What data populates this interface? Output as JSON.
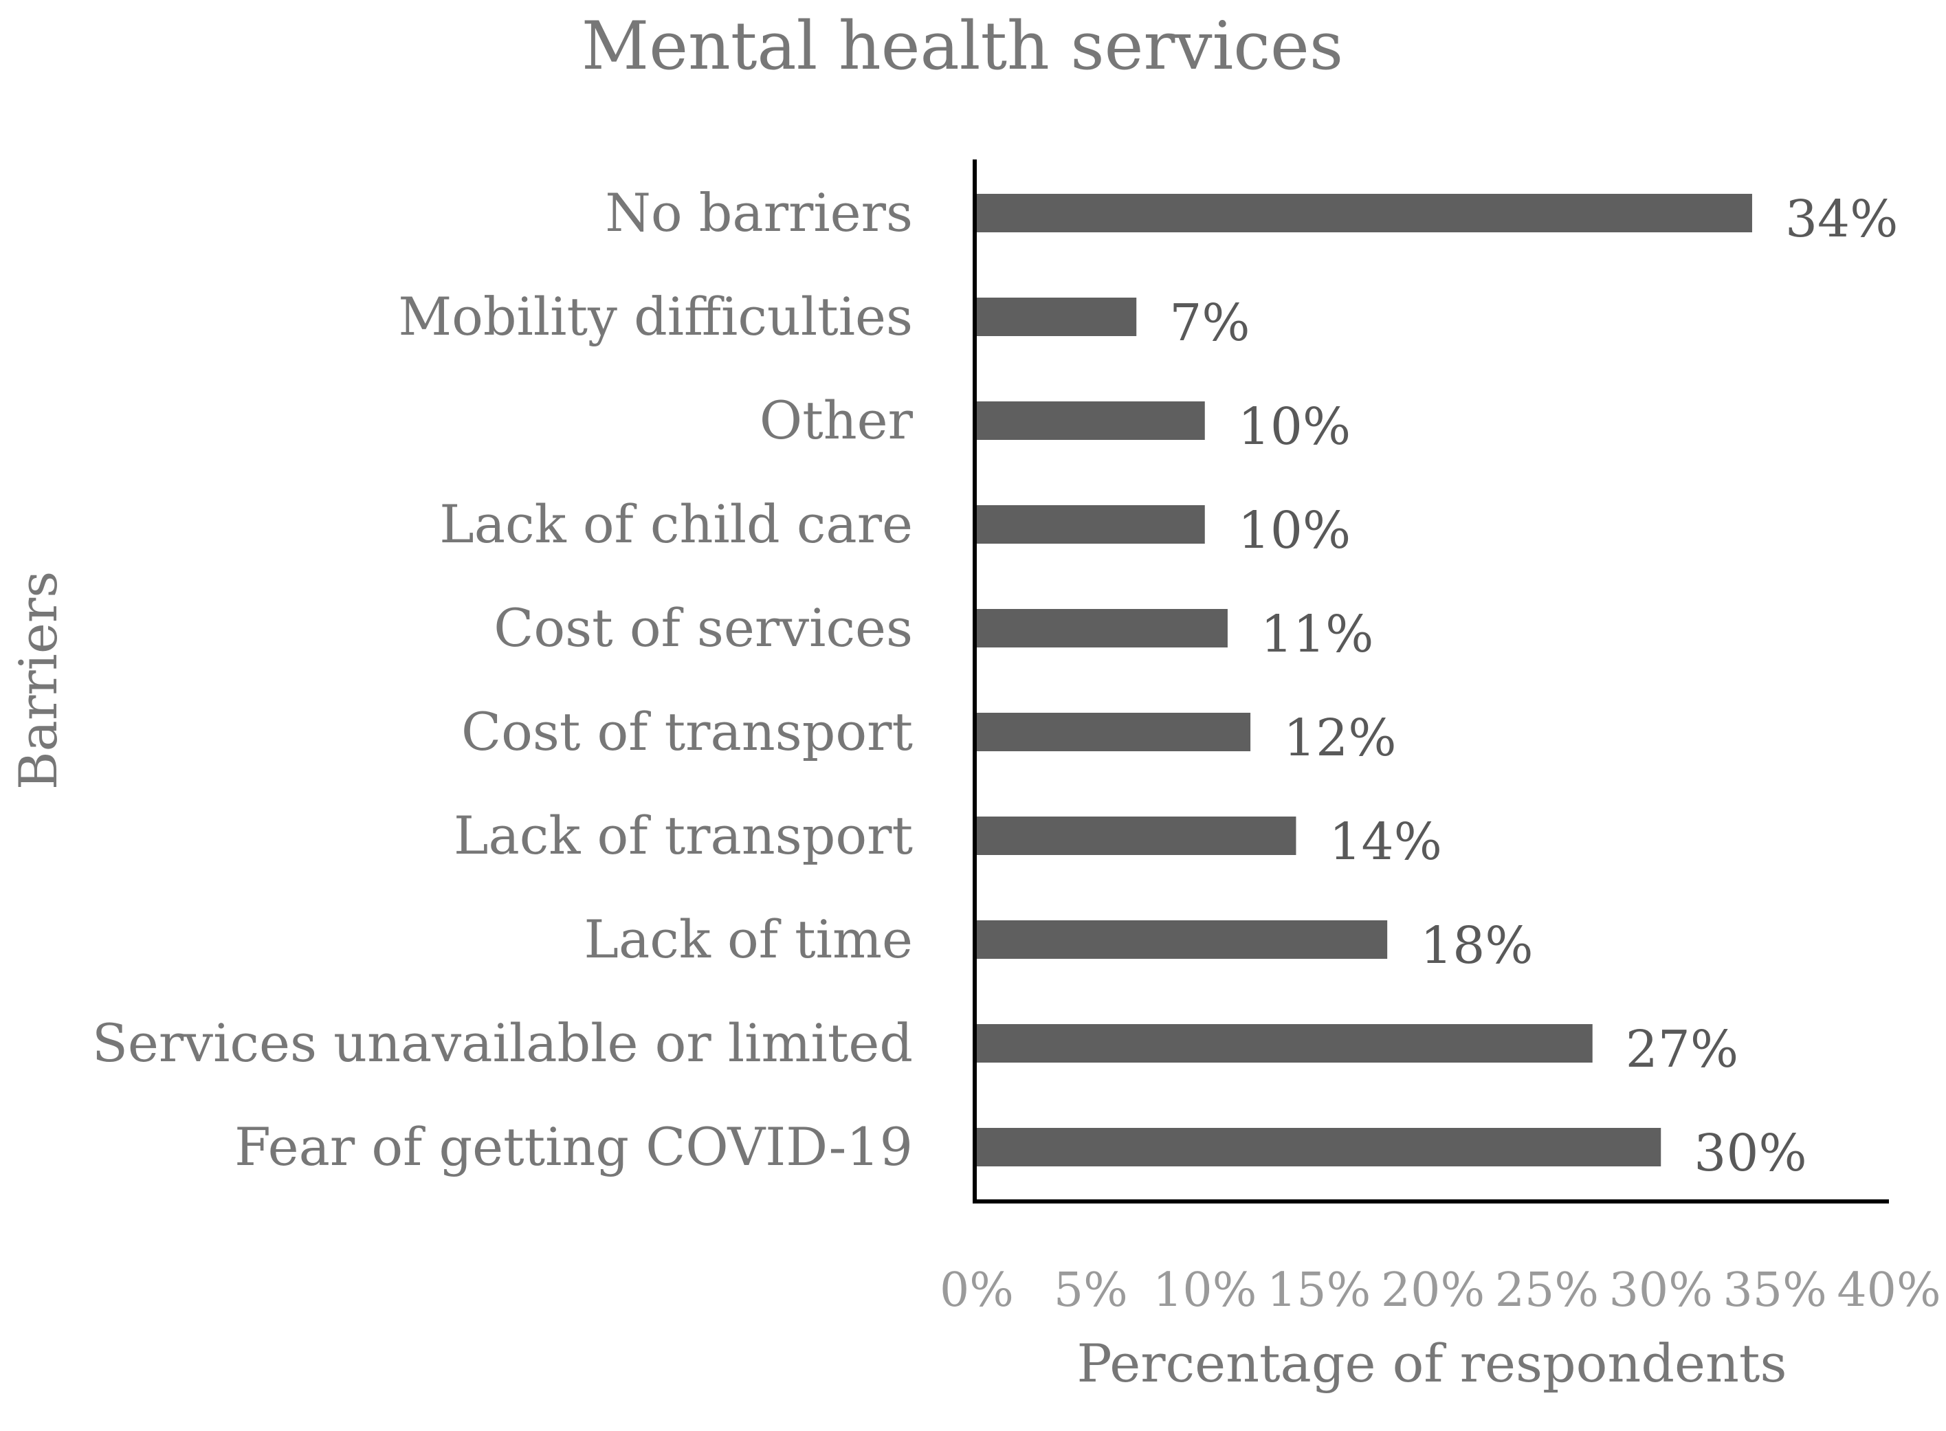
{
  "chart_data": {
    "type": "bar",
    "orientation": "horizontal",
    "title": "Mental health services",
    "xlabel": "Percentage of respondents",
    "ylabel": "Barriers",
    "categories": [
      "No barriers",
      "Mobility difficulties",
      "Other",
      "Lack of child care",
      "Cost of services",
      "Cost of transport",
      "Lack of transport",
      "Lack of time",
      "Services unavailable or limited",
      "Fear of getting COVID-19"
    ],
    "values": [
      34,
      7,
      10,
      10,
      11,
      12,
      14,
      18,
      27,
      30
    ],
    "data_labels": [
      "34%",
      "7%",
      "10%",
      "10%",
      "11%",
      "12%",
      "14%",
      "18%",
      "27%",
      "30%"
    ],
    "xlim": [
      0,
      40
    ],
    "xticks": [
      0,
      5,
      10,
      15,
      20,
      25,
      30,
      35,
      40
    ],
    "xtick_labels": [
      "0%",
      "5%",
      "10%",
      "15%",
      "20%",
      "25%",
      "30%",
      "35%",
      "40%"
    ],
    "grid": false,
    "legend": "none",
    "colors": {
      "bar": "#5f5f5f",
      "text": "#777777",
      "axis": "#000000"
    }
  }
}
